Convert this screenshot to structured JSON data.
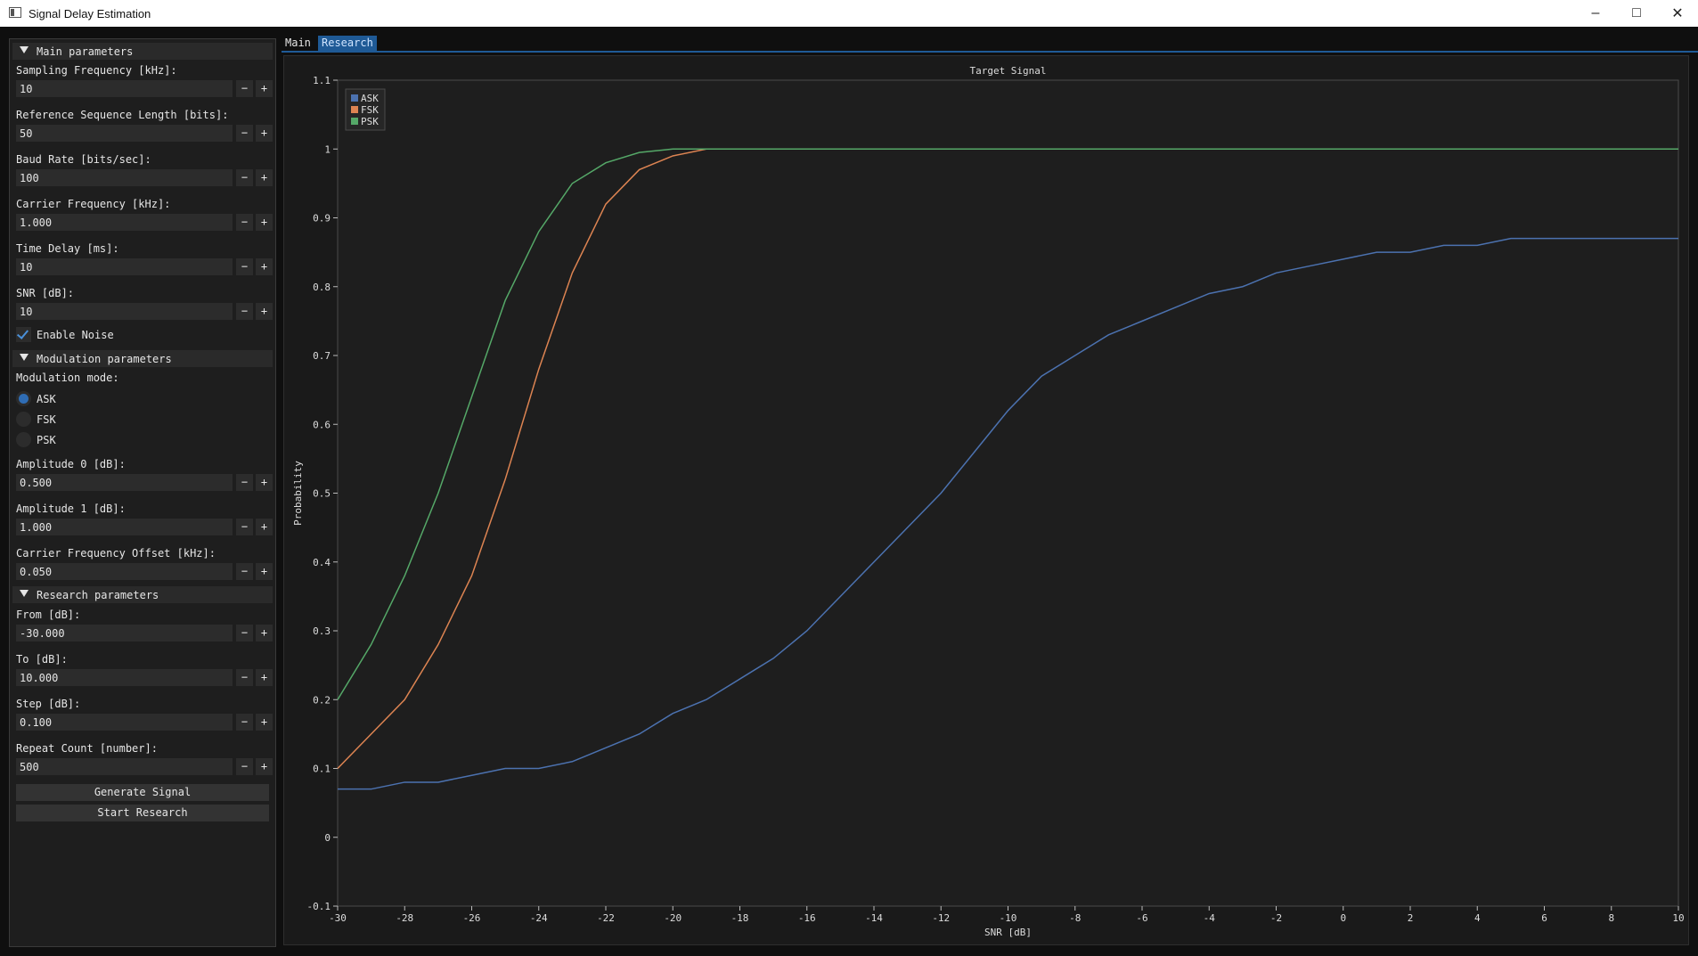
{
  "window": {
    "title": "Signal Delay Estimation"
  },
  "sections": {
    "main": "Main parameters",
    "modulation": "Modulation parameters",
    "research": "Research parameters"
  },
  "fields": [
    {
      "label": "Sampling Frequency [kHz]:",
      "value": "10"
    },
    {
      "label": "Reference Sequence Length [bits]:",
      "value": "50"
    },
    {
      "label": "Baud Rate [bits/sec]:",
      "value": "100"
    },
    {
      "label": "Carrier Frequency [kHz]:",
      "value": "1.000"
    },
    {
      "label": "Time Delay [ms]:",
      "value": "10"
    },
    {
      "label": "SNR [dB]:",
      "value": "10"
    }
  ],
  "noise": {
    "label": "Enable Noise",
    "checked": true
  },
  "modulation": {
    "label": "Modulation mode:",
    "options": [
      "ASK",
      "FSK",
      "PSK"
    ],
    "selected": "ASK"
  },
  "mod_fields": [
    {
      "label": "Amplitude 0 [dB]:",
      "value": "0.500"
    },
    {
      "label": "Amplitude 1 [dB]:",
      "value": "1.000"
    },
    {
      "label": "Carrier Frequency Offset [kHz]:",
      "value": "0.050"
    }
  ],
  "research_fields": [
    {
      "label": "From [dB]:",
      "value": "-30.000"
    },
    {
      "label": "To [dB]:",
      "value": "10.000"
    },
    {
      "label": "Step [dB]:",
      "value": "0.100"
    },
    {
      "label": "Repeat Count [number]:",
      "value": "500"
    }
  ],
  "stepper": {
    "minus": "−",
    "plus": "+"
  },
  "buttons": {
    "generate": "Generate Signal",
    "research": "Start Research"
  },
  "tabs": [
    "Main",
    "Research"
  ],
  "active_tab": "Research",
  "colors": {
    "ask": "#4c72b0",
    "fsk": "#dd8452",
    "psk": "#55a868",
    "accent": "#1f5a96"
  },
  "chart_data": {
    "type": "line",
    "title": "Target Signal",
    "xlabel": "SNR [dB]",
    "ylabel": "Probability",
    "xlim": [
      -30,
      10
    ],
    "ylim": [
      -0.1,
      1.1
    ],
    "xticks": [
      "-30",
      "-28",
      "-26",
      "-24",
      "-22",
      "-20",
      "-18",
      "-16",
      "-14",
      "-12",
      "-10",
      "-8",
      "-6",
      "-4",
      "-2",
      "0",
      "2",
      "4",
      "6",
      "8",
      "10"
    ],
    "yticks": [
      "-0.1",
      "0",
      "0.1",
      "0.2",
      "0.3",
      "0.4",
      "0.5",
      "0.6",
      "0.7",
      "0.8",
      "0.9",
      "1",
      "1.1"
    ],
    "legend_position": "top-left",
    "x": [
      -30,
      -29,
      -28,
      -27,
      -26,
      -25,
      -24,
      -23,
      -22,
      -21,
      -20,
      -19,
      -18,
      -17,
      -16,
      -15,
      -14,
      -13,
      -12,
      -11,
      -10,
      -9,
      -8,
      -7,
      -6,
      -5,
      -4,
      -3,
      -2,
      -1,
      0,
      1,
      2,
      3,
      4,
      5,
      6,
      7,
      8,
      9,
      10
    ],
    "series": [
      {
        "name": "ASK",
        "values": [
          0.07,
          0.07,
          0.08,
          0.08,
          0.09,
          0.1,
          0.1,
          0.11,
          0.13,
          0.15,
          0.18,
          0.2,
          0.23,
          0.26,
          0.3,
          0.35,
          0.4,
          0.45,
          0.5,
          0.56,
          0.62,
          0.67,
          0.7,
          0.73,
          0.75,
          0.77,
          0.79,
          0.8,
          0.82,
          0.83,
          0.84,
          0.85,
          0.85,
          0.86,
          0.86,
          0.87,
          0.87,
          0.87,
          0.87,
          0.87,
          0.87
        ]
      },
      {
        "name": "FSK",
        "values": [
          0.1,
          0.15,
          0.2,
          0.28,
          0.38,
          0.52,
          0.68,
          0.82,
          0.92,
          0.97,
          0.99,
          1,
          1,
          1,
          1,
          1,
          1,
          1,
          1,
          1,
          1,
          1,
          1,
          1,
          1,
          1,
          1,
          1,
          1,
          1,
          1,
          1,
          1,
          1,
          1,
          1,
          1,
          1,
          1,
          1,
          1
        ]
      },
      {
        "name": "PSK",
        "values": [
          0.2,
          0.28,
          0.38,
          0.5,
          0.64,
          0.78,
          0.88,
          0.95,
          0.98,
          0.995,
          1,
          1,
          1,
          1,
          1,
          1,
          1,
          1,
          1,
          1,
          1,
          1,
          1,
          1,
          1,
          1,
          1,
          1,
          1,
          1,
          1,
          1,
          1,
          1,
          1,
          1,
          1,
          1,
          1,
          1,
          1
        ]
      }
    ]
  }
}
